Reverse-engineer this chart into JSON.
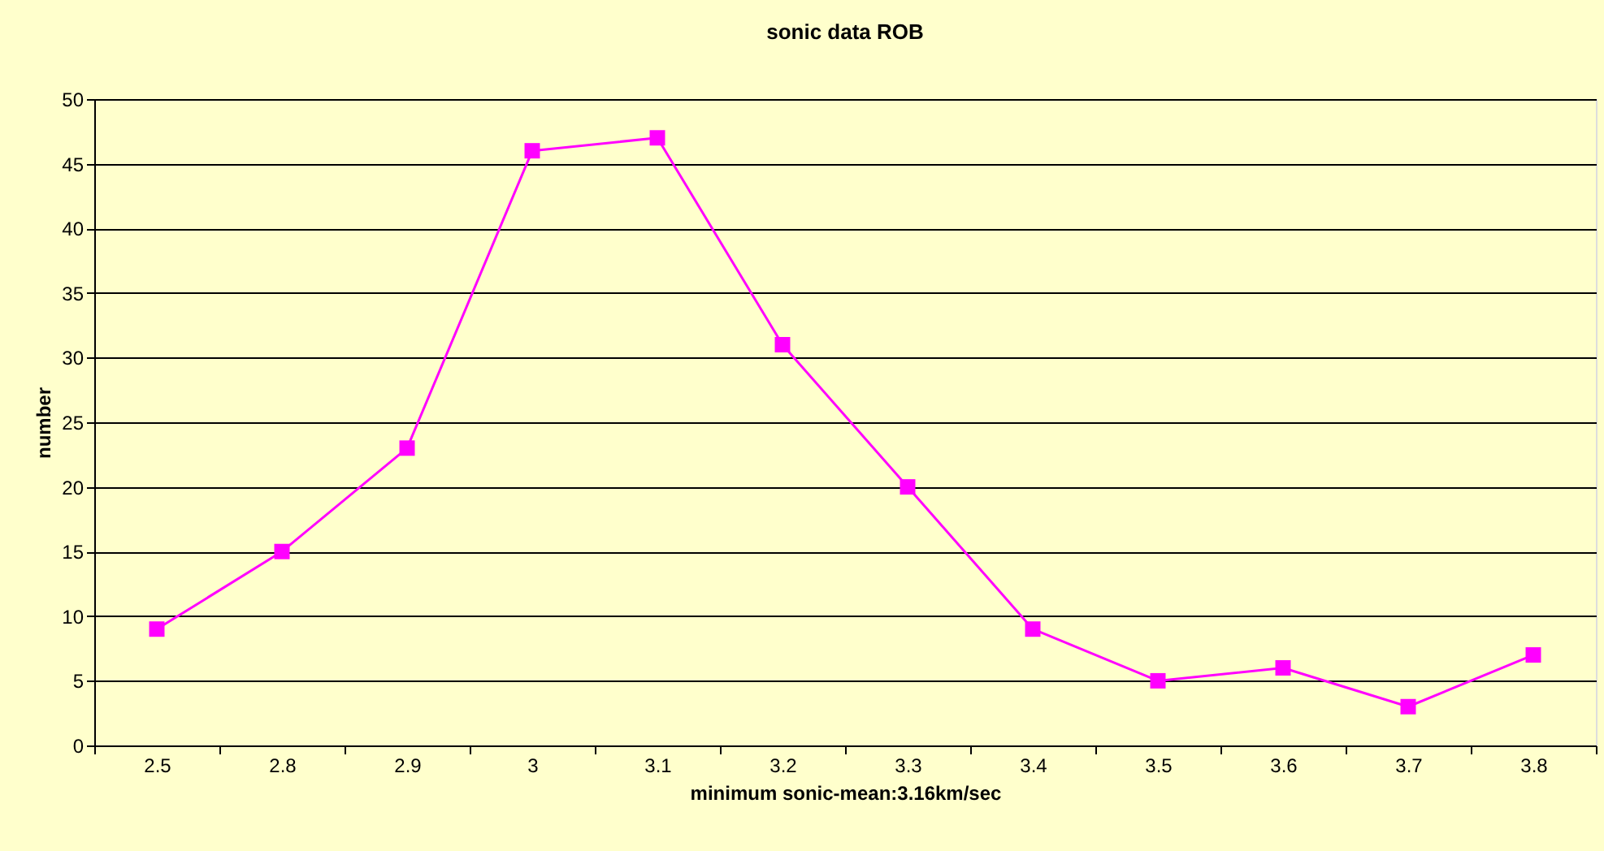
{
  "chart_data": {
    "type": "line",
    "title": "sonic data ROB",
    "xlabel": "minimum sonic-mean:3.16km/sec",
    "ylabel": "number",
    "categories": [
      "2.5",
      "2.8",
      "2.9",
      "3",
      "3.1",
      "3.2",
      "3.3",
      "3.4",
      "3.5",
      "3.6",
      "3.7",
      "3.8"
    ],
    "series": [
      {
        "color": "#ff00ff",
        "values": [
          9,
          15,
          23,
          46,
          47,
          31,
          20,
          9,
          5,
          6,
          3,
          7
        ]
      }
    ],
    "ylim": [
      0,
      50
    ],
    "yticks": [
      0,
      5,
      10,
      15,
      20,
      25,
      30,
      35,
      40,
      45,
      50
    ],
    "grid": "y",
    "marker": "square",
    "line_style": "solid"
  }
}
